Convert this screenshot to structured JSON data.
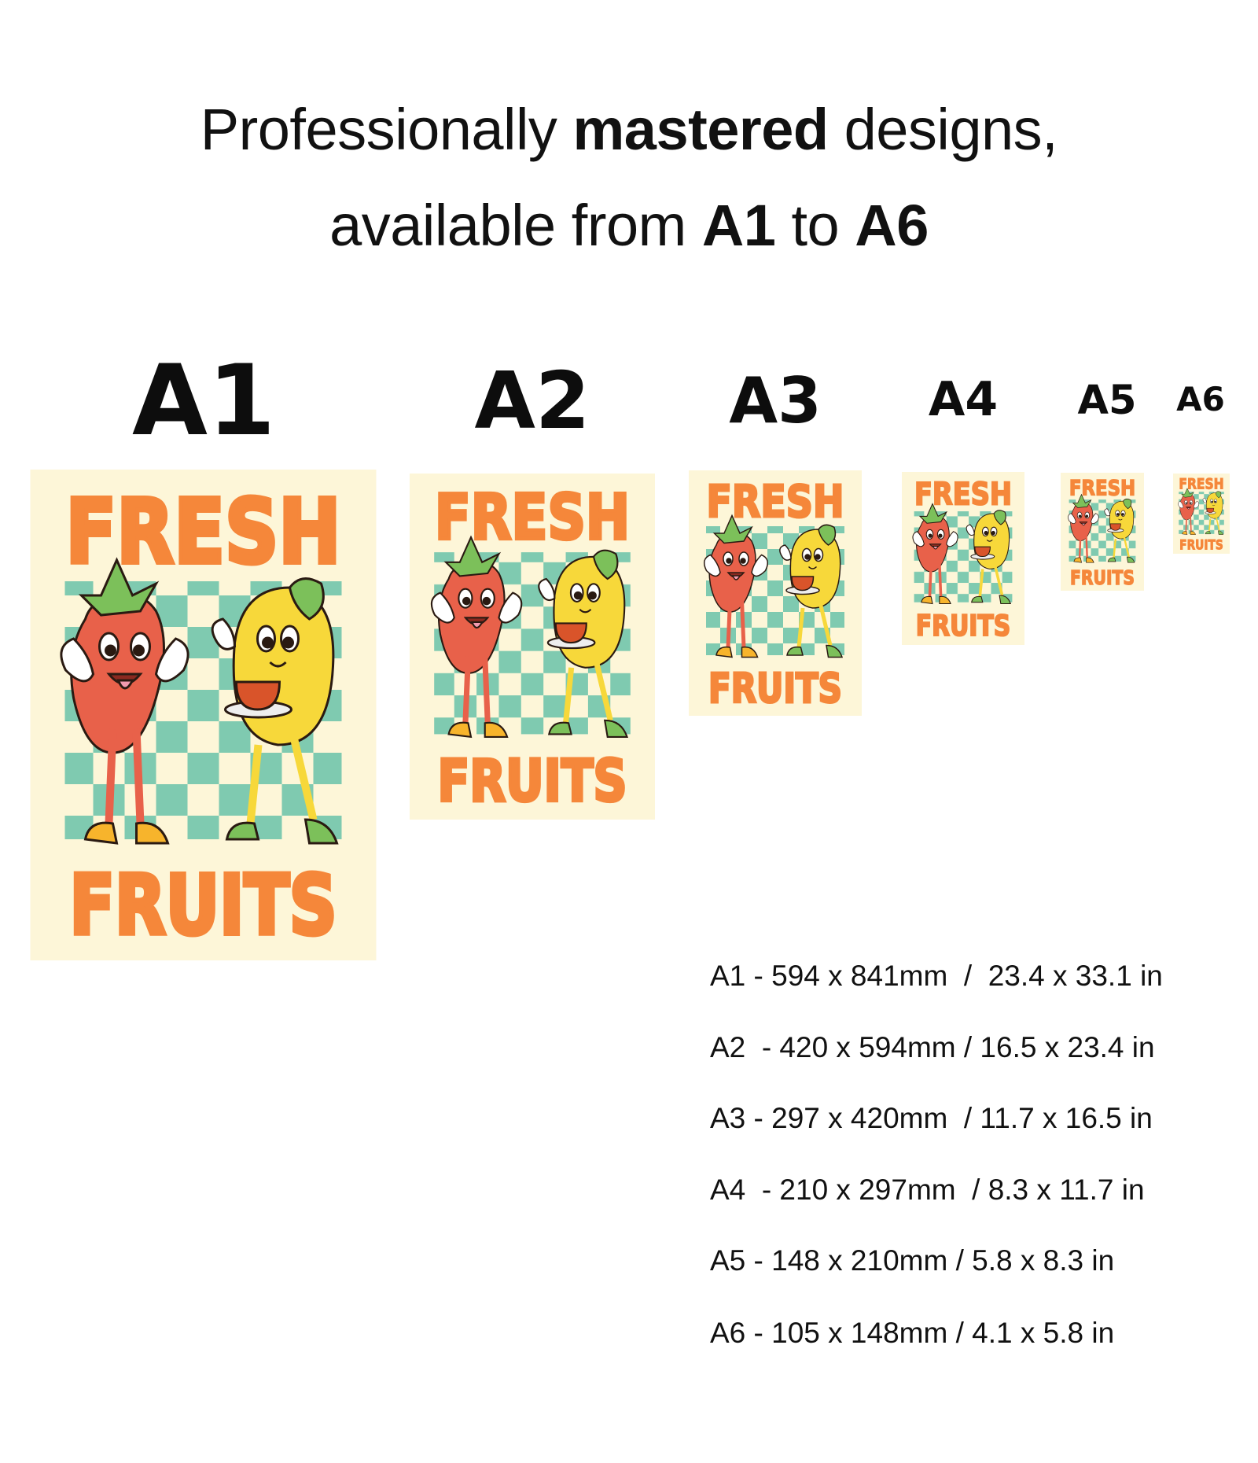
{
  "headline": {
    "line1_pre": "Professionally ",
    "line1_bold": "mastered",
    "line1_post": " designs,",
    "line2_pre": "available from ",
    "line2_bold1": "A1",
    "line2_mid": " to ",
    "line2_bold2": "A6"
  },
  "sizes": [
    {
      "label": "A1",
      "spec": "A1 - 594 x 841mm  /  23.4 x 33.1 in"
    },
    {
      "label": "A2",
      "spec": "A2  - 420 x 594mm / 16.5 x 23.4 in"
    },
    {
      "label": "A3",
      "spec": "A3 - 297 x 420mm  / 11.7 x 16.5 in"
    },
    {
      "label": "A4",
      "spec": "A4  - 210 x 297mm  / 8.3 x 11.7 in"
    },
    {
      "label": "A5",
      "spec": "A5 - 148 x 210mm / 5.8 x 8.3 in"
    },
    {
      "label": "A6",
      "spec": "A6 - 105 x 148mm / 4.1 x 5.8 in"
    }
  ],
  "poster": {
    "top_text": "FRESH",
    "bottom_text": "FRUITS"
  },
  "colors": {
    "poster_bg": "#fdf6d8",
    "title_orange": "#f5873a",
    "checker_teal": "#7fcab0",
    "strawberry_red": "#e8614a",
    "lemon_yellow": "#f7d83a",
    "leaf_green": "#7cc05a"
  }
}
